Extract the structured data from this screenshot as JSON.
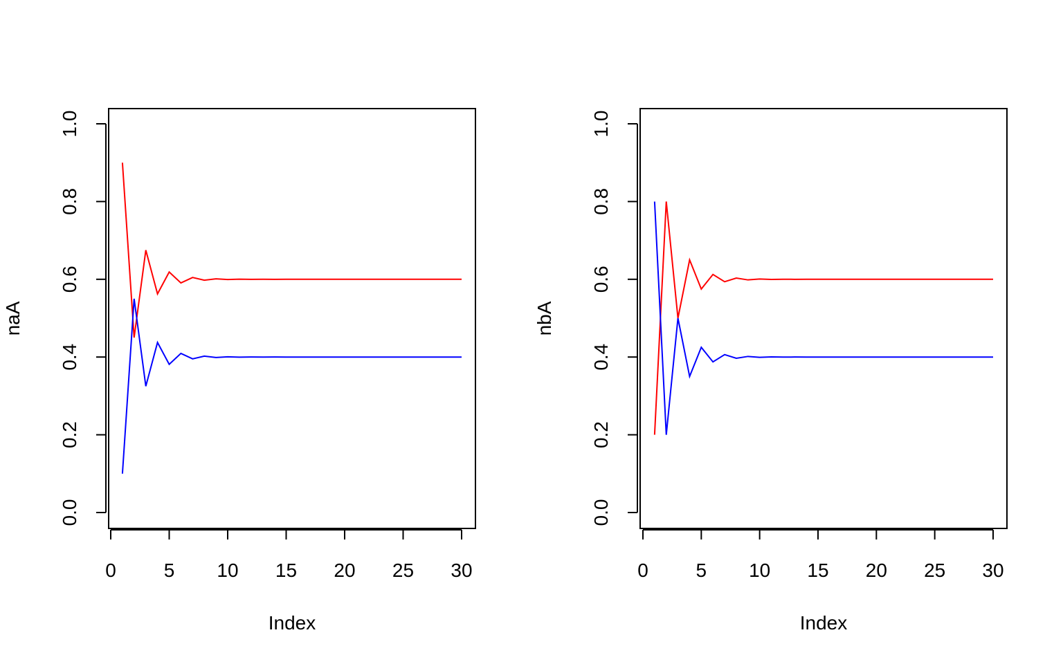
{
  "chart_data": [
    {
      "type": "line",
      "xlabel": "Index",
      "ylabel": "naA",
      "xlim": [
        1,
        30
      ],
      "ylim": [
        0,
        1
      ],
      "xticks": [
        0,
        5,
        10,
        15,
        20,
        25,
        30
      ],
      "yticks": [
        0.0,
        0.2,
        0.4,
        0.6,
        0.8,
        1.0
      ],
      "ytick_labels": [
        "0.0",
        "0.2",
        "0.4",
        "0.6",
        "0.8",
        "1.0"
      ],
      "x": [
        1,
        2,
        3,
        4,
        5,
        6,
        7,
        8,
        9,
        10,
        11,
        12,
        13,
        14,
        15,
        16,
        17,
        18,
        19,
        20,
        21,
        22,
        23,
        24,
        25,
        26,
        27,
        28,
        29,
        30
      ],
      "series": [
        {
          "color": "#ff0000",
          "values": [
            0.9,
            0.45,
            0.675,
            0.5625,
            0.61875,
            0.590625,
            0.6046875,
            0.59765625,
            0.601171875,
            0.599414063,
            0.600292969,
            0.599853516,
            0.600073242,
            0.599963379,
            0.60001831,
            0.599990845,
            0.600004578,
            0.599997711,
            0.600001144,
            0.599999428,
            0.600000286,
            0.599999857,
            0.600000072,
            0.599999964,
            0.600000018,
            0.599999991,
            0.600000004,
            0.599999998,
            0.600000001,
            0.6
          ]
        },
        {
          "color": "#0000ff",
          "values": [
            0.1,
            0.55,
            0.325,
            0.4375,
            0.38125,
            0.409375,
            0.3953125,
            0.40234375,
            0.398828125,
            0.400585938,
            0.399707031,
            0.400146484,
            0.399926758,
            0.400036621,
            0.39998169,
            0.400009155,
            0.399995422,
            0.400002289,
            0.399998856,
            0.400000572,
            0.399999714,
            0.400000143,
            0.399999928,
            0.400000036,
            0.399999982,
            0.400000009,
            0.399999996,
            0.400000002,
            0.399999999,
            0.4
          ]
        }
      ]
    },
    {
      "type": "line",
      "xlabel": "Index",
      "ylabel": "nbA",
      "xlim": [
        1,
        30
      ],
      "ylim": [
        0,
        1
      ],
      "xticks": [
        0,
        5,
        10,
        15,
        20,
        25,
        30
      ],
      "yticks": [
        0.0,
        0.2,
        0.4,
        0.6,
        0.8,
        1.0
      ],
      "ytick_labels": [
        "0.0",
        "0.2",
        "0.4",
        "0.6",
        "0.8",
        "1.0"
      ],
      "x": [
        1,
        2,
        3,
        4,
        5,
        6,
        7,
        8,
        9,
        10,
        11,
        12,
        13,
        14,
        15,
        16,
        17,
        18,
        19,
        20,
        21,
        22,
        23,
        24,
        25,
        26,
        27,
        28,
        29,
        30
      ],
      "series": [
        {
          "color": "#ff0000",
          "values": [
            0.2,
            0.8,
            0.5,
            0.65,
            0.575,
            0.6125,
            0.59375,
            0.603125,
            0.5984375,
            0.60078125,
            0.599609375,
            0.600195313,
            0.599902344,
            0.600048828,
            0.599975586,
            0.600012207,
            0.599993896,
            0.600003052,
            0.599998474,
            0.600000763,
            0.599999619,
            0.600000191,
            0.599999905,
            0.600000048,
            0.599999976,
            0.600000012,
            0.599999994,
            0.600000003,
            0.599999999,
            0.6
          ]
        },
        {
          "color": "#0000ff",
          "values": [
            0.8,
            0.2,
            0.5,
            0.35,
            0.425,
            0.3875,
            0.40625,
            0.396875,
            0.4015625,
            0.39921875,
            0.400390625,
            0.399804688,
            0.400097656,
            0.399951172,
            0.400024414,
            0.399987793,
            0.400006104,
            0.399996948,
            0.400001526,
            0.399999237,
            0.400000381,
            0.399999809,
            0.400000095,
            0.399999952,
            0.400000024,
            0.399999988,
            0.400000006,
            0.399999997,
            0.400000001,
            0.4
          ]
        }
      ]
    }
  ]
}
